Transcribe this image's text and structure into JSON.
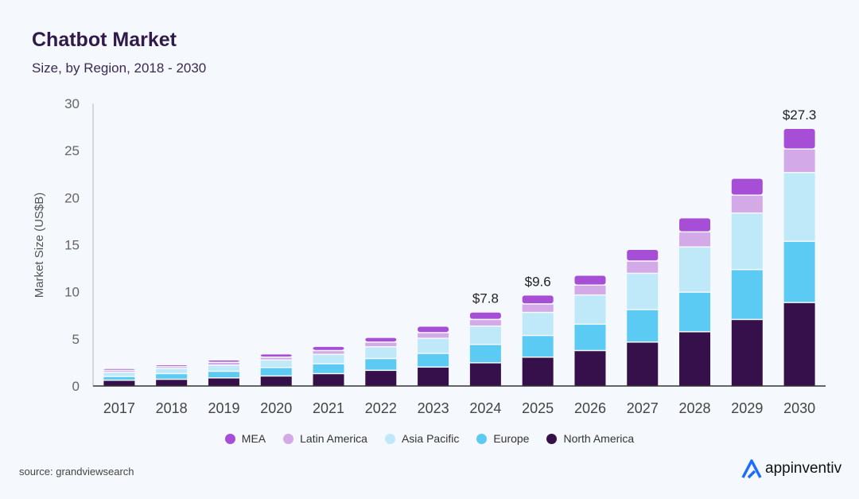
{
  "header": {
    "title": "Chatbot Market",
    "subtitle": "Size, by Region, 2018 - 2030"
  },
  "footer": {
    "source": "source: grandviewsearch",
    "logo_text": "appinventiv"
  },
  "chart_data": {
    "type": "bar",
    "stacked": true,
    "title": "Chatbot Market",
    "subtitle": "Size, by Region, 2018 - 2030",
    "xlabel": "",
    "ylabel": "Market Size (US$B)",
    "ylim": [
      0,
      30
    ],
    "yticks": [
      0,
      5,
      10,
      15,
      20,
      25,
      30
    ],
    "grid": false,
    "legend_position": "bottom",
    "categories": [
      "2017",
      "2018",
      "2019",
      "2020",
      "2021",
      "2022",
      "2023",
      "2024",
      "2025",
      "2026",
      "2027",
      "2028",
      "2029",
      "2030"
    ],
    "series": [
      {
        "name": "North America",
        "color": "#36104a",
        "values": [
          0.55,
          0.65,
          0.8,
          1.0,
          1.25,
          1.6,
          1.95,
          2.4,
          3.0,
          3.7,
          4.6,
          5.7,
          7.0,
          8.8
        ]
      },
      {
        "name": "Europe",
        "color": "#5ccbf3",
        "values": [
          0.4,
          0.6,
          0.7,
          0.9,
          1.05,
          1.25,
          1.45,
          1.95,
          2.3,
          2.8,
          3.45,
          4.2,
          5.3,
          6.5
        ]
      },
      {
        "name": "Asia Pacific",
        "color": "#bfe9f9",
        "values": [
          0.45,
          0.55,
          0.65,
          0.8,
          1.0,
          1.25,
          1.6,
          1.95,
          2.45,
          3.1,
          3.85,
          4.8,
          6.0,
          7.3
        ]
      },
      {
        "name": "Latin America",
        "color": "#d4a9e8",
        "values": [
          0.2,
          0.2,
          0.3,
          0.3,
          0.4,
          0.5,
          0.6,
          0.7,
          0.9,
          1.05,
          1.3,
          1.6,
          1.9,
          2.5
        ]
      },
      {
        "name": "MEA",
        "color": "#a64fd6",
        "values": [
          0.2,
          0.2,
          0.25,
          0.35,
          0.45,
          0.5,
          0.7,
          0.8,
          0.95,
          1.05,
          1.25,
          1.5,
          1.8,
          2.2
        ]
      }
    ],
    "annotations": [
      {
        "category": "2024",
        "label": "$7.8"
      },
      {
        "category": "2025",
        "label": "$9.6"
      },
      {
        "category": "2030",
        "label": "$27.3"
      }
    ],
    "legend_order": [
      "MEA",
      "Latin America",
      "Asia Pacific",
      "Europe",
      "North America"
    ]
  }
}
